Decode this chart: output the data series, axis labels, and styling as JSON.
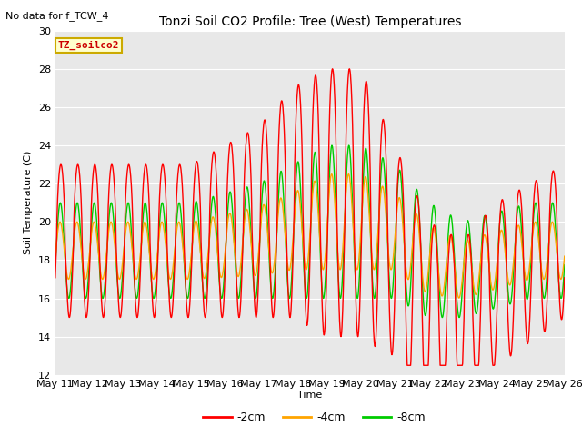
{
  "title": "Tonzi Soil CO2 Profile: Tree (West) Temperatures",
  "subtitle": "No data for f_TCW_4",
  "ylabel": "Soil Temperature (C)",
  "xlabel": "Time",
  "ylim": [
    12,
    30
  ],
  "yticks": [
    12,
    14,
    16,
    18,
    20,
    22,
    24,
    26,
    28,
    30
  ],
  "plot_bg": "#e8e8e8",
  "fig_bg": "#ffffff",
  "legend_label": "TZ_soilco2",
  "legend_box_facecolor": "#ffffcc",
  "legend_box_edgecolor": "#ccaa00",
  "series_colors": [
    "#ff0000",
    "#ffa500",
    "#00cc00"
  ],
  "series_labels": [
    "-2cm",
    "-4cm",
    "-8cm"
  ],
  "xtick_labels": [
    "May 11",
    "May 12",
    "May 13",
    "May 14",
    "May 15",
    "May 16",
    "May 17",
    "May 18",
    "May 19",
    "May 20",
    "May 21",
    "May 22",
    "May 23",
    "May 24",
    "May 25",
    "May 26"
  ]
}
